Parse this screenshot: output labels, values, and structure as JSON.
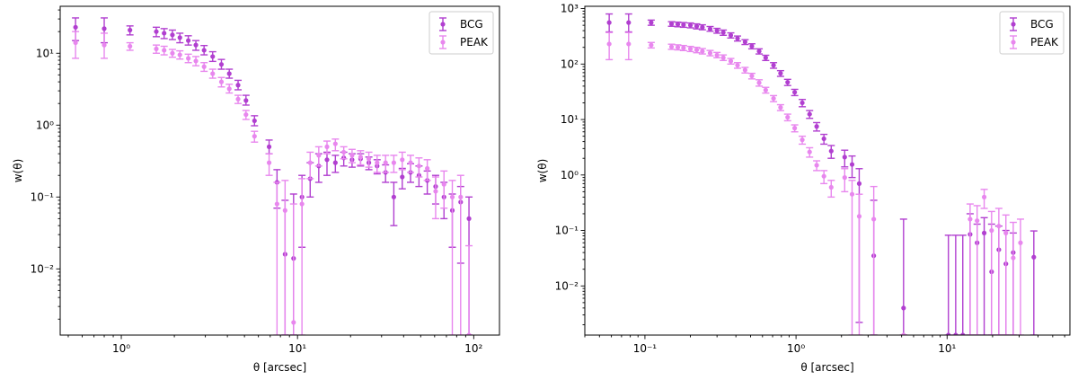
{
  "colors": {
    "BCG": "#b13fd0",
    "PEAK": "#e887ee"
  },
  "chart_data": [
    {
      "type": "scatter",
      "xscale": "log",
      "yscale": "log",
      "xlabel": "θ [arcsec]",
      "ylabel": "w(θ)",
      "xlim": [
        0.45,
        140
      ],
      "ylim": [
        0.0012,
        45
      ],
      "xticks": [
        {
          "value": 1,
          "label": "10⁰"
        },
        {
          "value": 10,
          "label": "10¹"
        },
        {
          "value": 100,
          "label": "10²"
        }
      ],
      "yticks": [
        {
          "value": 0.01,
          "label": "10⁻²"
        },
        {
          "value": 0.1,
          "label": "10⁻¹"
        },
        {
          "value": 1,
          "label": "10⁰"
        },
        {
          "value": 10,
          "label": "10¹"
        }
      ],
      "legend": {
        "placement": "top-right",
        "entries": [
          "BCG",
          "PEAK"
        ]
      },
      "series": [
        {
          "name": "BCG",
          "points": [
            [
              0.55,
              23,
              31,
              15
            ],
            [
              0.8,
              22,
              31,
              14
            ],
            [
              1.12,
              21,
              24,
              18
            ],
            [
              1.58,
              20,
              23,
              17
            ],
            [
              1.75,
              19,
              22,
              16
            ],
            [
              1.95,
              18,
              21,
              15.5
            ],
            [
              2.15,
              16.5,
              19,
              14
            ],
            [
              2.4,
              15,
              17.5,
              13
            ],
            [
              2.65,
              13,
              15,
              11
            ],
            [
              2.95,
              11,
              12.8,
              9.5
            ],
            [
              3.3,
              9,
              10.5,
              7.7
            ],
            [
              3.7,
              7,
              8.2,
              6
            ],
            [
              4.1,
              5.2,
              6,
              4.5
            ],
            [
              4.6,
              3.6,
              4.2,
              3.1
            ],
            [
              5.1,
              2.2,
              2.6,
              1.9
            ],
            [
              5.7,
              1.15,
              1.35,
              0.98
            ],
            [
              6.9,
              0.5,
              0.62,
              0.4
            ],
            [
              7.65,
              0.16,
              0.24,
              0.07
            ],
            [
              8.5,
              0.016,
              0.09,
              0.0012
            ],
            [
              9.5,
              0.014,
              0.11,
              0.0012
            ],
            [
              10.6,
              0.1,
              0.2,
              0.02
            ],
            [
              11.8,
              0.18,
              0.3,
              0.1
            ],
            [
              13.2,
              0.27,
              0.4,
              0.16
            ],
            [
              14.7,
              0.33,
              0.42,
              0.2
            ],
            [
              16.4,
              0.3,
              0.38,
              0.22
            ],
            [
              18.3,
              0.35,
              0.42,
              0.27
            ],
            [
              20.4,
              0.33,
              0.4,
              0.26
            ],
            [
              22.8,
              0.34,
              0.4,
              0.27
            ],
            [
              25.4,
              0.3,
              0.36,
              0.24
            ],
            [
              28.3,
              0.27,
              0.33,
              0.21
            ],
            [
              31.6,
              0.22,
              0.28,
              0.16
            ],
            [
              35.2,
              0.1,
              0.16,
              0.04
            ],
            [
              39.3,
              0.19,
              0.25,
              0.13
            ],
            [
              43.8,
              0.22,
              0.29,
              0.16
            ],
            [
              48.9,
              0.2,
              0.27,
              0.14
            ],
            [
              54.5,
              0.17,
              0.23,
              0.11
            ],
            [
              60.8,
              0.14,
              0.2,
              0.08
            ],
            [
              67.8,
              0.1,
              0.16,
              0.05
            ],
            [
              75.6,
              0.065,
              0.11,
              0.02
            ],
            [
              84.3,
              0.085,
              0.14,
              0.012
            ],
            [
              94,
              0.05,
              0.1,
              0.0012
            ]
          ]
        },
        {
          "name": "PEAK",
          "points": [
            [
              0.55,
              14,
              20,
              8.5
            ],
            [
              0.8,
              13,
              19,
              8.5
            ],
            [
              1.12,
              12.5,
              14,
              11
            ],
            [
              1.58,
              11.5,
              13,
              10
            ],
            [
              1.75,
              11,
              12.5,
              9.5
            ],
            [
              1.95,
              10,
              11.3,
              8.8
            ],
            [
              2.15,
              9.5,
              10.8,
              8.3
            ],
            [
              2.4,
              8.5,
              9.7,
              7.4
            ],
            [
              2.65,
              7.8,
              9,
              6.7
            ],
            [
              2.95,
              6.5,
              7.4,
              5.6
            ],
            [
              3.3,
              5.2,
              6,
              4.5
            ],
            [
              3.7,
              4,
              4.6,
              3.4
            ],
            [
              4.1,
              3.2,
              3.7,
              2.8
            ],
            [
              4.6,
              2.3,
              2.6,
              2
            ],
            [
              5.1,
              1.4,
              1.6,
              1.2
            ],
            [
              5.7,
              0.7,
              0.82,
              0.58
            ],
            [
              6.9,
              0.3,
              0.4,
              0.2
            ],
            [
              7.65,
              0.08,
              0.16,
              0.0012
            ],
            [
              8.5,
              0.065,
              0.17,
              0.0012
            ],
            [
              9.5,
              0.0018,
              0.08,
              0.0012
            ],
            [
              10.6,
              0.08,
              0.18,
              0.0012
            ],
            [
              11.8,
              0.3,
              0.42,
              0.18
            ],
            [
              13.2,
              0.38,
              0.5,
              0.27
            ],
            [
              14.7,
              0.5,
              0.6,
              0.4
            ],
            [
              16.4,
              0.55,
              0.64,
              0.44
            ],
            [
              18.3,
              0.42,
              0.5,
              0.34
            ],
            [
              20.4,
              0.38,
              0.46,
              0.3
            ],
            [
              22.8,
              0.36,
              0.44,
              0.28
            ],
            [
              25.4,
              0.34,
              0.42,
              0.26
            ],
            [
              28.3,
              0.3,
              0.38,
              0.22
            ],
            [
              31.6,
              0.3,
              0.38,
              0.22
            ],
            [
              35.2,
              0.3,
              0.38,
              0.22
            ],
            [
              39.3,
              0.33,
              0.42,
              0.24
            ],
            [
              43.8,
              0.3,
              0.38,
              0.22
            ],
            [
              48.9,
              0.27,
              0.35,
              0.19
            ],
            [
              54.5,
              0.25,
              0.33,
              0.17
            ],
            [
              60.8,
              0.12,
              0.19,
              0.05
            ],
            [
              67.8,
              0.15,
              0.23,
              0.07
            ],
            [
              75.6,
              0.1,
              0.17,
              0.0012
            ],
            [
              84.3,
              0.1,
              0.2,
              0.0012
            ],
            [
              94,
              0.0012,
              0.021,
              0.0012
            ]
          ]
        }
      ]
    },
    {
      "type": "scatter",
      "xscale": "log",
      "yscale": "log",
      "xlabel": "θ [arcsec]",
      "ylabel": "w(θ)",
      "xlim": [
        0.04,
        65
      ],
      "ylim": [
        0.0013,
        1100
      ],
      "xticks": [
        {
          "value": 0.1,
          "label": "10⁻¹"
        },
        {
          "value": 1,
          "label": "10⁰"
        },
        {
          "value": 10,
          "label": "10¹"
        }
      ],
      "yticks": [
        {
          "value": 0.01,
          "label": "10⁻²"
        },
        {
          "value": 0.1,
          "label": "10⁻¹"
        },
        {
          "value": 1,
          "label": "10⁰"
        },
        {
          "value": 10,
          "label": "10¹"
        },
        {
          "value": 100,
          "label": "10²"
        },
        {
          "value": 1000,
          "label": "10³"
        }
      ],
      "legend": {
        "placement": "top-right",
        "entries": [
          "BCG",
          "PEAK"
        ]
      },
      "series": [
        {
          "name": "BCG",
          "points": [
            [
              0.058,
              560,
              800,
              380
            ],
            [
              0.078,
              560,
              800,
              380
            ],
            [
              0.11,
              560,
              620,
              500
            ],
            [
              0.15,
              530,
              580,
              480
            ],
            [
              0.165,
              520,
              570,
              470
            ],
            [
              0.18,
              510,
              560,
              460
            ],
            [
              0.2,
              500,
              550,
              450
            ],
            [
              0.22,
              480,
              530,
              430
            ],
            [
              0.24,
              460,
              510,
              415
            ],
            [
              0.27,
              430,
              475,
              390
            ],
            [
              0.3,
              400,
              440,
              360
            ],
            [
              0.33,
              370,
              410,
              330
            ],
            [
              0.37,
              330,
              365,
              295
            ],
            [
              0.41,
              290,
              320,
              260
            ],
            [
              0.46,
              250,
              275,
              225
            ],
            [
              0.51,
              210,
              232,
              188
            ],
            [
              0.57,
              170,
              188,
              152
            ],
            [
              0.63,
              130,
              144,
              116
            ],
            [
              0.71,
              95,
              106,
              84
            ],
            [
              0.79,
              68,
              76,
              60
            ],
            [
              0.88,
              47,
              53,
              41
            ],
            [
              0.98,
              31,
              35,
              27
            ],
            [
              1.1,
              20,
              23,
              17
            ],
            [
              1.23,
              12.5,
              14.5,
              10.5
            ],
            [
              1.37,
              7.5,
              8.8,
              6.2
            ],
            [
              1.53,
              4.5,
              5.4,
              3.6
            ],
            [
              1.71,
              2.7,
              3.4,
              2
            ],
            [
              2.1,
              2.1,
              2.8,
              1.4
            ],
            [
              2.35,
              1.55,
              2.2,
              0.9
            ],
            [
              2.62,
              0.7,
              1.3,
              0.0022
            ],
            [
              3.27,
              0.035,
              0.35,
              0.0013
            ],
            [
              5.15,
              0.004,
              0.16,
              0.0013
            ],
            [
              10.2,
              0.0013,
              0.082,
              0.0013
            ],
            [
              11.4,
              0.0013,
              0.082,
              0.0013
            ],
            [
              12.7,
              0.0013,
              0.082,
              0.0013
            ],
            [
              14.2,
              0.085,
              0.2,
              0.0013
            ],
            [
              15.8,
              0.06,
              0.13,
              0.0013
            ],
            [
              17.6,
              0.09,
              0.17,
              0.0013
            ],
            [
              19.7,
              0.018,
              0.13,
              0.0013
            ],
            [
              22,
              0.045,
              0.12,
              0.0013
            ],
            [
              24.5,
              0.025,
              0.1,
              0.0013
            ],
            [
              27.4,
              0.04,
              0.09,
              0.0013
            ],
            [
              37.5,
              0.033,
              0.098,
              0.0013
            ]
          ]
        },
        {
          "name": "PEAK",
          "points": [
            [
              0.058,
              230,
              370,
              120
            ],
            [
              0.078,
              230,
              370,
              120
            ],
            [
              0.11,
              220,
              245,
              195
            ],
            [
              0.15,
              205,
              228,
              184
            ],
            [
              0.165,
              200,
              222,
              180
            ],
            [
              0.18,
              195,
              216,
              175
            ],
            [
              0.2,
              188,
              208,
              168
            ],
            [
              0.22,
              180,
              200,
              160
            ],
            [
              0.24,
              170,
              190,
              152
            ],
            [
              0.27,
              158,
              176,
              141
            ],
            [
              0.3,
              145,
              162,
              130
            ],
            [
              0.33,
              130,
              146,
              116
            ],
            [
              0.37,
              113,
              126,
              100
            ],
            [
              0.41,
              95,
              106,
              84
            ],
            [
              0.46,
              78,
              87,
              69
            ],
            [
              0.51,
              61,
              68,
              54
            ],
            [
              0.57,
              46,
              52,
              40
            ],
            [
              0.63,
              34,
              38,
              30
            ],
            [
              0.71,
              24,
              27,
              21
            ],
            [
              0.79,
              16.5,
              18.5,
              14.5
            ],
            [
              0.88,
              11,
              12.5,
              9.5
            ],
            [
              0.98,
              7,
              8,
              6
            ],
            [
              1.1,
              4.3,
              5,
              3.6
            ],
            [
              1.23,
              2.6,
              3.1,
              2.1
            ],
            [
              1.37,
              1.5,
              1.8,
              1.2
            ],
            [
              1.53,
              0.95,
              1.2,
              0.7
            ],
            [
              1.71,
              0.6,
              0.8,
              0.4
            ],
            [
              2.1,
              0.9,
              1.3,
              0.5
            ],
            [
              2.35,
              0.45,
              0.8,
              0.0013
            ],
            [
              2.62,
              0.18,
              0.45,
              0.0013
            ],
            [
              3.27,
              0.16,
              0.62,
              0.0013
            ],
            [
              5.15,
              0.0013,
              0.0013,
              0.0013
            ],
            [
              14.2,
              0.16,
              0.3,
              0.0013
            ],
            [
              15.8,
              0.15,
              0.28,
              0.0013
            ],
            [
              17.6,
              0.4,
              0.55,
              0.25
            ],
            [
              19.7,
              0.1,
              0.22,
              0.0013
            ],
            [
              22,
              0.12,
              0.25,
              0.0013
            ],
            [
              24.5,
              0.09,
              0.19,
              0.0013
            ],
            [
              27.4,
              0.032,
              0.14,
              0.0013
            ],
            [
              30.6,
              0.06,
              0.16,
              0.0013
            ]
          ]
        }
      ]
    }
  ]
}
